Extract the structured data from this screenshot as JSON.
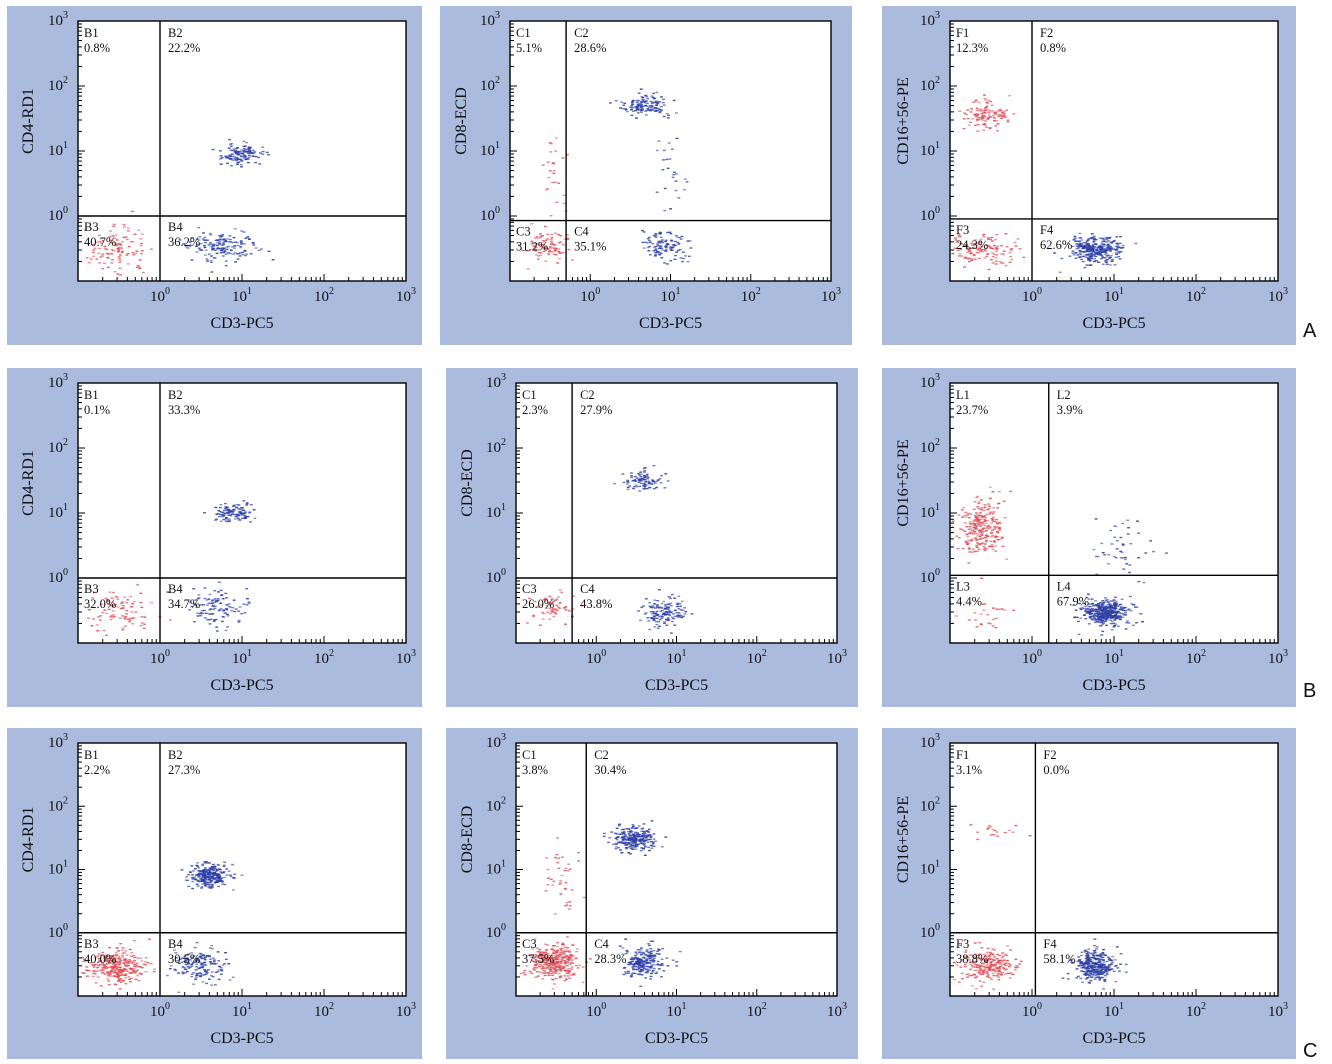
{
  "colors": {
    "panel_bg": "#aabbdd",
    "plot_bg": "#ffffff",
    "neg": "#e0505a",
    "pos": "#2d3fa6",
    "axis": "#000000"
  },
  "row_labels": [
    "A",
    "B",
    "C"
  ],
  "chart_data": [
    {
      "type": "scatter",
      "row": "A",
      "xlabel": "CD3-PC5",
      "ylabel": "CD4-RD1",
      "xscale": "log",
      "yscale": "log",
      "xlim": [
        0.1,
        1000
      ],
      "ylim": [
        0.1,
        1000
      ],
      "x_ticks": [
        "10",
        "10",
        "10",
        "10"
      ],
      "x_exps": [
        "0",
        "1",
        "2",
        "3"
      ],
      "y_ticks": [
        "10",
        "10",
        "10",
        "10"
      ],
      "y_exps": [
        "0",
        "1",
        "2",
        "3"
      ],
      "gate": {
        "x": 1.0,
        "y": 1.0
      },
      "quadrants": [
        {
          "label": "B1",
          "value": "0.8%"
        },
        {
          "label": "B2",
          "value": "22.2%"
        },
        {
          "label": "B3",
          "value": "40.7%"
        },
        {
          "label": "B4",
          "value": "36.2%"
        }
      ],
      "clusters": [
        {
          "x": 0.3,
          "y": 0.3,
          "sx": 0.18,
          "sy": 0.18,
          "n": 110,
          "color": "neg"
        },
        {
          "x": 6,
          "y": 0.35,
          "sx": 0.2,
          "sy": 0.12,
          "n": 160,
          "color": "pos"
        },
        {
          "x": 10,
          "y": 9,
          "sx": 0.12,
          "sy": 0.08,
          "n": 130,
          "color": "pos"
        }
      ]
    },
    {
      "type": "scatter",
      "row": "A",
      "xlabel": "CD3-PC5",
      "ylabel": "CD8-ECD",
      "xscale": "log",
      "yscale": "log",
      "xlim": [
        0.1,
        1000
      ],
      "ylim": [
        0.1,
        1000
      ],
      "x_ticks": [
        "10",
        "10",
        "10",
        "10"
      ],
      "x_exps": [
        "0",
        "1",
        "2",
        "3"
      ],
      "y_ticks": [
        "10",
        "10",
        "10",
        "10"
      ],
      "y_exps": [
        "0",
        "1",
        "2",
        "3"
      ],
      "gate": {
        "x": 0.5,
        "y": 0.85
      },
      "quadrants": [
        {
          "label": "C1",
          "value": "5.1%"
        },
        {
          "label": "C2",
          "value": "28.6%"
        },
        {
          "label": "C3",
          "value": "31.2%"
        },
        {
          "label": "C4",
          "value": "35.1%"
        }
      ],
      "clusters": [
        {
          "x": 0.3,
          "y": 0.35,
          "sx": 0.14,
          "sy": 0.12,
          "n": 90,
          "color": "neg"
        },
        {
          "x": 0.35,
          "y": 4,
          "sx": 0.1,
          "sy": 0.35,
          "n": 25,
          "color": "neg"
        },
        {
          "x": 8,
          "y": 0.35,
          "sx": 0.15,
          "sy": 0.12,
          "n": 110,
          "color": "pos"
        },
        {
          "x": 5,
          "y": 50,
          "sx": 0.14,
          "sy": 0.08,
          "n": 130,
          "color": "pos"
        },
        {
          "x": 10,
          "y": 4,
          "sx": 0.1,
          "sy": 0.3,
          "n": 25,
          "color": "pos"
        }
      ]
    },
    {
      "type": "scatter",
      "row": "A",
      "xlabel": "CD3-PC5",
      "ylabel": "CD16+56-PE",
      "xscale": "log",
      "yscale": "log",
      "xlim": [
        0.1,
        1000
      ],
      "ylim": [
        0.1,
        1000
      ],
      "x_ticks": [
        "10",
        "10",
        "10",
        "10"
      ],
      "x_exps": [
        "0",
        "1",
        "2",
        "3"
      ],
      "y_ticks": [
        "10",
        "10",
        "10",
        "10"
      ],
      "y_exps": [
        "0",
        "1",
        "2",
        "3"
      ],
      "gate": {
        "x": 1.0,
        "y": 0.9
      },
      "quadrants": [
        {
          "label": "F1",
          "value": "12.3%"
        },
        {
          "label": "F2",
          "value": "0.8%"
        },
        {
          "label": "F3",
          "value": "24.3%"
        },
        {
          "label": "F4",
          "value": "62.6%"
        }
      ],
      "clusters": [
        {
          "x": 0.28,
          "y": 35,
          "sx": 0.15,
          "sy": 0.12,
          "n": 120,
          "color": "neg"
        },
        {
          "x": 0.25,
          "y": 0.3,
          "sx": 0.2,
          "sy": 0.12,
          "n": 130,
          "color": "neg"
        },
        {
          "x": 6,
          "y": 0.3,
          "sx": 0.15,
          "sy": 0.1,
          "n": 320,
          "color": "pos"
        }
      ]
    },
    {
      "type": "scatter",
      "row": "B",
      "xlabel": "CD3-PC5",
      "ylabel": "CD4-RD1",
      "xscale": "log",
      "yscale": "log",
      "xlim": [
        0.1,
        1000
      ],
      "ylim": [
        0.1,
        1000
      ],
      "x_ticks": [
        "10",
        "10",
        "10",
        "10"
      ],
      "x_exps": [
        "0",
        "1",
        "2",
        "3"
      ],
      "y_ticks": [
        "10",
        "10",
        "10",
        "10"
      ],
      "y_exps": [
        "0",
        "1",
        "2",
        "3"
      ],
      "gate": {
        "x": 1.0,
        "y": 1.0
      },
      "quadrants": [
        {
          "label": "B1",
          "value": "0.1%"
        },
        {
          "label": "B2",
          "value": "33.3%"
        },
        {
          "label": "B3",
          "value": "32.0%"
        },
        {
          "label": "B4",
          "value": "34.7%"
        }
      ],
      "clusters": [
        {
          "x": 0.35,
          "y": 0.3,
          "sx": 0.22,
          "sy": 0.15,
          "n": 90,
          "color": "neg"
        },
        {
          "x": 5,
          "y": 0.35,
          "sx": 0.18,
          "sy": 0.15,
          "n": 110,
          "color": "pos"
        },
        {
          "x": 8,
          "y": 10,
          "sx": 0.12,
          "sy": 0.07,
          "n": 110,
          "color": "pos"
        }
      ]
    },
    {
      "type": "scatter",
      "row": "B",
      "xlabel": "CD3-PC5",
      "ylabel": "CD8-ECD",
      "xscale": "log",
      "yscale": "log",
      "xlim": [
        0.1,
        1000
      ],
      "ylim": [
        0.1,
        1000
      ],
      "x_ticks": [
        "10",
        "10",
        "10",
        "10"
      ],
      "x_exps": [
        "0",
        "1",
        "2",
        "3"
      ],
      "y_ticks": [
        "10",
        "10",
        "10",
        "10"
      ],
      "y_exps": [
        "0",
        "1",
        "2",
        "3"
      ],
      "gate": {
        "x": 0.5,
        "y": 1.0
      },
      "quadrants": [
        {
          "label": "C1",
          "value": "2.3%"
        },
        {
          "label": "C2",
          "value": "27.9%"
        },
        {
          "label": "C3",
          "value": "26.0%"
        },
        {
          "label": "C4",
          "value": "43.8%"
        }
      ],
      "clusters": [
        {
          "x": 0.3,
          "y": 0.35,
          "sx": 0.14,
          "sy": 0.12,
          "n": 60,
          "color": "neg"
        },
        {
          "x": 7,
          "y": 0.3,
          "sx": 0.15,
          "sy": 0.12,
          "n": 140,
          "color": "pos"
        },
        {
          "x": 4,
          "y": 30,
          "sx": 0.12,
          "sy": 0.08,
          "n": 90,
          "color": "pos"
        }
      ]
    },
    {
      "type": "scatter",
      "row": "B",
      "xlabel": "CD3-PC5",
      "ylabel": "CD16+56-PE",
      "xscale": "log",
      "yscale": "log",
      "xlim": [
        0.1,
        1000
      ],
      "ylim": [
        0.1,
        1000
      ],
      "x_ticks": [
        "10",
        "10",
        "10",
        "10"
      ],
      "x_exps": [
        "0",
        "1",
        "2",
        "3"
      ],
      "y_ticks": [
        "10",
        "10",
        "10",
        "10"
      ],
      "y_exps": [
        "0",
        "1",
        "2",
        "3"
      ],
      "gate": {
        "x": 1.6,
        "y": 1.1
      },
      "quadrants": [
        {
          "label": "L1",
          "value": "23.7%"
        },
        {
          "label": "L2",
          "value": "3.9%"
        },
        {
          "label": "L3",
          "value": "4.4%"
        },
        {
          "label": "L4",
          "value": "67.9%"
        }
      ],
      "clusters": [
        {
          "x": 0.25,
          "y": 6,
          "sx": 0.13,
          "sy": 0.22,
          "n": 260,
          "color": "neg"
        },
        {
          "x": 0.3,
          "y": 0.3,
          "sx": 0.15,
          "sy": 0.12,
          "n": 25,
          "color": "neg"
        },
        {
          "x": 8,
          "y": 0.3,
          "sx": 0.14,
          "sy": 0.1,
          "n": 380,
          "color": "pos"
        },
        {
          "x": 12,
          "y": 3,
          "sx": 0.2,
          "sy": 0.25,
          "n": 45,
          "color": "pos"
        }
      ]
    },
    {
      "type": "scatter",
      "row": "C",
      "xlabel": "CD3-PC5",
      "ylabel": "CD4-RD1",
      "xscale": "log",
      "yscale": "log",
      "xlim": [
        0.1,
        1000
      ],
      "ylim": [
        0.1,
        1000
      ],
      "x_ticks": [
        "10",
        "10",
        "10",
        "10"
      ],
      "x_exps": [
        "0",
        "1",
        "2",
        "3"
      ],
      "y_ticks": [
        "10",
        "10",
        "10",
        "10"
      ],
      "y_exps": [
        "0",
        "1",
        "2",
        "3"
      ],
      "gate": {
        "x": 1.0,
        "y": 1.0
      },
      "quadrants": [
        {
          "label": "B1",
          "value": "2.2%"
        },
        {
          "label": "B2",
          "value": "27.3%"
        },
        {
          "label": "B3",
          "value": "40.0%"
        },
        {
          "label": "B4",
          "value": "30.5%"
        }
      ],
      "clusters": [
        {
          "x": 0.3,
          "y": 0.3,
          "sx": 0.18,
          "sy": 0.13,
          "n": 320,
          "color": "neg"
        },
        {
          "x": 3,
          "y": 0.3,
          "sx": 0.17,
          "sy": 0.13,
          "n": 160,
          "color": "pos"
        },
        {
          "x": 4,
          "y": 8,
          "sx": 0.12,
          "sy": 0.09,
          "n": 260,
          "color": "pos"
        }
      ]
    },
    {
      "type": "scatter",
      "row": "C",
      "xlabel": "CD3-PC5",
      "ylabel": "CD8-ECD",
      "xscale": "log",
      "yscale": "log",
      "xlim": [
        0.1,
        1000
      ],
      "ylim": [
        0.1,
        1000
      ],
      "x_ticks": [
        "10",
        "10",
        "10",
        "10"
      ],
      "x_exps": [
        "0",
        "1",
        "2",
        "3"
      ],
      "y_ticks": [
        "10",
        "10",
        "10",
        "10"
      ],
      "y_exps": [
        "0",
        "1",
        "2",
        "3"
      ],
      "gate": {
        "x": 0.75,
        "y": 1.0
      },
      "quadrants": [
        {
          "label": "C1",
          "value": "3.8%"
        },
        {
          "label": "C2",
          "value": "30.4%"
        },
        {
          "label": "C3",
          "value": "37.5%"
        },
        {
          "label": "C4",
          "value": "28.3%"
        }
      ],
      "clusters": [
        {
          "x": 0.3,
          "y": 0.35,
          "sx": 0.15,
          "sy": 0.13,
          "n": 330,
          "color": "neg"
        },
        {
          "x": 0.35,
          "y": 8,
          "sx": 0.12,
          "sy": 0.3,
          "n": 40,
          "color": "neg"
        },
        {
          "x": 4,
          "y": 0.35,
          "sx": 0.13,
          "sy": 0.12,
          "n": 220,
          "color": "pos"
        },
        {
          "x": 3,
          "y": 30,
          "sx": 0.13,
          "sy": 0.1,
          "n": 260,
          "color": "pos"
        }
      ]
    },
    {
      "type": "scatter",
      "row": "C",
      "xlabel": "CD3-PC5",
      "ylabel": "CD16+56-PE",
      "xscale": "log",
      "yscale": "log",
      "xlim": [
        0.1,
        1000
      ],
      "ylim": [
        0.1,
        1000
      ],
      "x_ticks": [
        "10",
        "10",
        "10",
        "10"
      ],
      "x_exps": [
        "0",
        "1",
        "2",
        "3"
      ],
      "y_ticks": [
        "10",
        "10",
        "10",
        "10"
      ],
      "y_exps": [
        "0",
        "1",
        "2",
        "3"
      ],
      "gate": {
        "x": 1.1,
        "y": 1.0
      },
      "quadrants": [
        {
          "label": "F1",
          "value": "3.1%"
        },
        {
          "label": "F2",
          "value": "0.0%"
        },
        {
          "label": "F3",
          "value": "38.8%"
        },
        {
          "label": "F4",
          "value": "58.1%"
        }
      ],
      "clusters": [
        {
          "x": 0.3,
          "y": 0.3,
          "sx": 0.18,
          "sy": 0.13,
          "n": 230,
          "color": "neg"
        },
        {
          "x": 0.35,
          "y": 40,
          "sx": 0.15,
          "sy": 0.05,
          "n": 18,
          "color": "neg"
        },
        {
          "x": 6,
          "y": 0.3,
          "sx": 0.13,
          "sy": 0.12,
          "n": 320,
          "color": "pos"
        }
      ]
    }
  ]
}
